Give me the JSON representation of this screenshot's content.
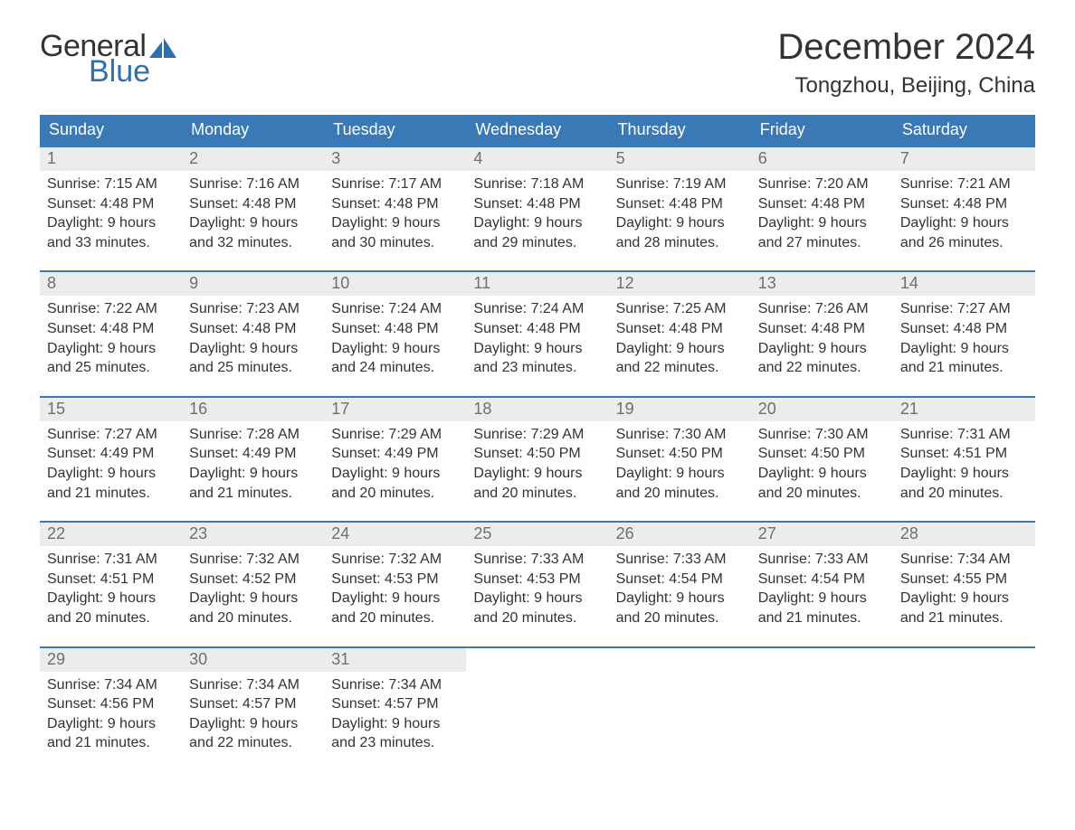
{
  "brand": {
    "line1": "General",
    "line2": "Blue",
    "logo_color": "#2f6fae"
  },
  "title": {
    "month": "December 2024",
    "location": "Tongzhou, Beijing, China"
  },
  "colors": {
    "header_bg": "#3a78b6",
    "header_text": "#ffffff",
    "row_border": "#3a78b6",
    "daynum_bg": "#ececec",
    "daynum_text": "#6f6f6f",
    "body_text": "#333333",
    "page_bg": "#ffffff"
  },
  "weekdays": [
    "Sunday",
    "Monday",
    "Tuesday",
    "Wednesday",
    "Thursday",
    "Friday",
    "Saturday"
  ],
  "weeks": [
    [
      {
        "n": "1",
        "sr": "7:15 AM",
        "ss": "4:48 PM",
        "dl": "9 hours and 33 minutes."
      },
      {
        "n": "2",
        "sr": "7:16 AM",
        "ss": "4:48 PM",
        "dl": "9 hours and 32 minutes."
      },
      {
        "n": "3",
        "sr": "7:17 AM",
        "ss": "4:48 PM",
        "dl": "9 hours and 30 minutes."
      },
      {
        "n": "4",
        "sr": "7:18 AM",
        "ss": "4:48 PM",
        "dl": "9 hours and 29 minutes."
      },
      {
        "n": "5",
        "sr": "7:19 AM",
        "ss": "4:48 PM",
        "dl": "9 hours and 28 minutes."
      },
      {
        "n": "6",
        "sr": "7:20 AM",
        "ss": "4:48 PM",
        "dl": "9 hours and 27 minutes."
      },
      {
        "n": "7",
        "sr": "7:21 AM",
        "ss": "4:48 PM",
        "dl": "9 hours and 26 minutes."
      }
    ],
    [
      {
        "n": "8",
        "sr": "7:22 AM",
        "ss": "4:48 PM",
        "dl": "9 hours and 25 minutes."
      },
      {
        "n": "9",
        "sr": "7:23 AM",
        "ss": "4:48 PM",
        "dl": "9 hours and 25 minutes."
      },
      {
        "n": "10",
        "sr": "7:24 AM",
        "ss": "4:48 PM",
        "dl": "9 hours and 24 minutes."
      },
      {
        "n": "11",
        "sr": "7:24 AM",
        "ss": "4:48 PM",
        "dl": "9 hours and 23 minutes."
      },
      {
        "n": "12",
        "sr": "7:25 AM",
        "ss": "4:48 PM",
        "dl": "9 hours and 22 minutes."
      },
      {
        "n": "13",
        "sr": "7:26 AM",
        "ss": "4:48 PM",
        "dl": "9 hours and 22 minutes."
      },
      {
        "n": "14",
        "sr": "7:27 AM",
        "ss": "4:48 PM",
        "dl": "9 hours and 21 minutes."
      }
    ],
    [
      {
        "n": "15",
        "sr": "7:27 AM",
        "ss": "4:49 PM",
        "dl": "9 hours and 21 minutes."
      },
      {
        "n": "16",
        "sr": "7:28 AM",
        "ss": "4:49 PM",
        "dl": "9 hours and 21 minutes."
      },
      {
        "n": "17",
        "sr": "7:29 AM",
        "ss": "4:49 PM",
        "dl": "9 hours and 20 minutes."
      },
      {
        "n": "18",
        "sr": "7:29 AM",
        "ss": "4:50 PM",
        "dl": "9 hours and 20 minutes."
      },
      {
        "n": "19",
        "sr": "7:30 AM",
        "ss": "4:50 PM",
        "dl": "9 hours and 20 minutes."
      },
      {
        "n": "20",
        "sr": "7:30 AM",
        "ss": "4:50 PM",
        "dl": "9 hours and 20 minutes."
      },
      {
        "n": "21",
        "sr": "7:31 AM",
        "ss": "4:51 PM",
        "dl": "9 hours and 20 minutes."
      }
    ],
    [
      {
        "n": "22",
        "sr": "7:31 AM",
        "ss": "4:51 PM",
        "dl": "9 hours and 20 minutes."
      },
      {
        "n": "23",
        "sr": "7:32 AM",
        "ss": "4:52 PM",
        "dl": "9 hours and 20 minutes."
      },
      {
        "n": "24",
        "sr": "7:32 AM",
        "ss": "4:53 PM",
        "dl": "9 hours and 20 minutes."
      },
      {
        "n": "25",
        "sr": "7:33 AM",
        "ss": "4:53 PM",
        "dl": "9 hours and 20 minutes."
      },
      {
        "n": "26",
        "sr": "7:33 AM",
        "ss": "4:54 PM",
        "dl": "9 hours and 20 minutes."
      },
      {
        "n": "27",
        "sr": "7:33 AM",
        "ss": "4:54 PM",
        "dl": "9 hours and 21 minutes."
      },
      {
        "n": "28",
        "sr": "7:34 AM",
        "ss": "4:55 PM",
        "dl": "9 hours and 21 minutes."
      }
    ],
    [
      {
        "n": "29",
        "sr": "7:34 AM",
        "ss": "4:56 PM",
        "dl": "9 hours and 21 minutes."
      },
      {
        "n": "30",
        "sr": "7:34 AM",
        "ss": "4:57 PM",
        "dl": "9 hours and 22 minutes."
      },
      {
        "n": "31",
        "sr": "7:34 AM",
        "ss": "4:57 PM",
        "dl": "9 hours and 23 minutes."
      },
      null,
      null,
      null,
      null
    ]
  ],
  "labels": {
    "sunrise": "Sunrise: ",
    "sunset": "Sunset: ",
    "daylight": "Daylight: "
  }
}
